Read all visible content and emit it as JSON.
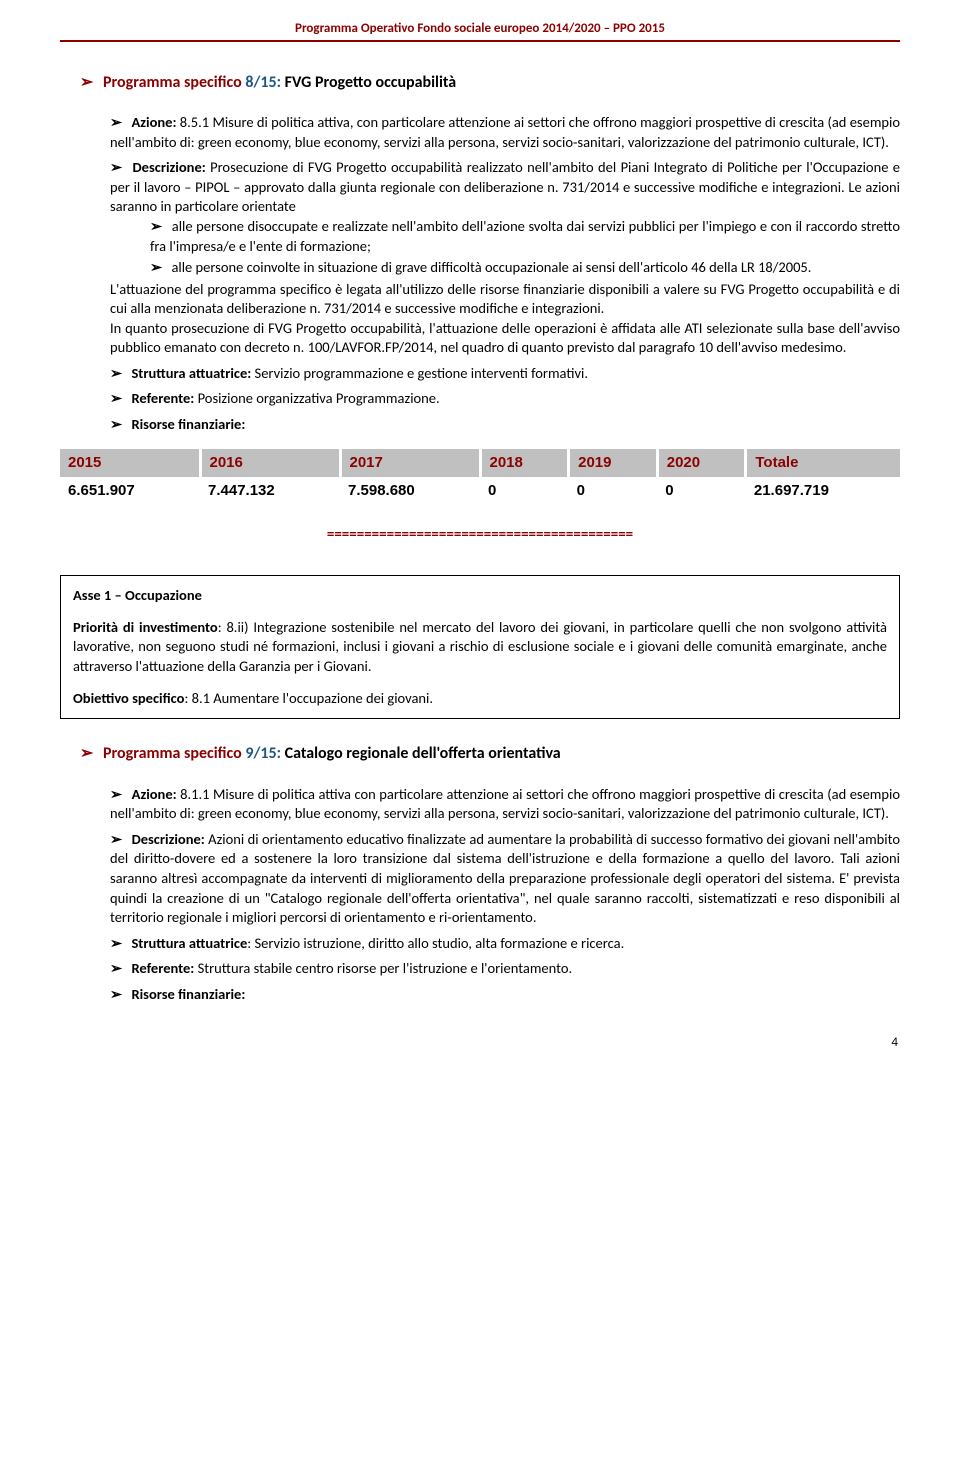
{
  "header": {
    "title": "Programma Operativo Fondo sociale europeo 2014/2020 – PPO 2015"
  },
  "program1": {
    "label": "Programma specifico",
    "num": " 8/15:",
    "title": " FVG Progetto occupabilità",
    "azione_label": "Azione:",
    "azione_text": " 8.5.1 Misure di politica attiva, con particolare attenzione ai settori che offrono maggiori prospettive di crescita (ad esempio nell'ambito di: green economy, blue economy, servizi alla persona, servizi socio-sanitari, valorizzazione del patrimonio culturale, ICT).",
    "descrizione_label": "Descrizione:",
    "descrizione_text": " Prosecuzione di FVG Progetto occupabilità realizzato nell'ambito del Piani Integrato di Politiche per l'Occupazione e per il lavoro – PIPOL – approvato dalla giunta regionale con deliberazione n. 731/2014 e successive modifiche e integrazioni. Le azioni saranno in particolare orientate",
    "sub1": "alle persone disoccupate e realizzate nell'ambito dell'azione svolta dai servizi pubblici per l'impiego e con il raccordo stretto fra l'impresa/e  e l'ente di formazione;",
    "sub2": "alle persone coinvolte in situazione di grave difficoltà  occupazionale ai sensi dell'articolo 46 della LR 18/2005.",
    "para2": "L'attuazione del programma specifico è legata all'utilizzo delle risorse finanziarie disponibili a valere su FVG Progetto occupabilità e di cui alla menzionata deliberazione n. 731/2014 e successive modifiche e integrazioni.",
    "para3": "In quanto prosecuzione di FVG Progetto occupabilità, l'attuazione delle operazioni è affidata alle ATI selezionate sulla base dell'avviso pubblico emanato con decreto n.  100/LAVFOR.FP/2014, nel quadro di quanto previsto dal paragrafo 10 dell'avviso medesimo.",
    "struttura_label": "Struttura attuatrice:",
    "struttura_text": "  Servizio programmazione e gestione interventi formativi.",
    "referente_label": "Referente:",
    "referente_text": " Posizione organizzativa Programmazione.",
    "risorse_label": "Risorse finanziarie:"
  },
  "table1": {
    "headers": [
      "2015",
      "2016",
      "2017",
      "2018",
      "2019",
      "2020",
      "Totale"
    ],
    "row": [
      "6.651.907",
      "7.447.132",
      "7.598.680",
      "0",
      "0",
      "0",
      "21.697.719"
    ]
  },
  "separator": "=========================================",
  "box": {
    "asse_label": "Asse 1 – Occupazione",
    "priorita_label": "Priorità di investimento",
    "priorita_text": ": 8.ii) Integrazione sostenibile nel mercato del lavoro dei giovani, in particolare quelli che non svolgono attività lavorative, non seguono studi né formazioni, inclusi i giovani a rischio di esclusione sociale e i giovani delle comunità emarginate, anche attraverso l'attuazione della Garanzia per i Giovani.",
    "obiettivo_label": "Obiettivo specifico",
    "obiettivo_text": ": 8.1 Aumentare l'occupazione dei giovani."
  },
  "program2": {
    "label": "Programma specifico",
    "num": " 9/15:",
    "title": "  Catalogo regionale dell'offerta orientativa",
    "azione_label": "Azione:",
    "azione_text": "  8.1.1 Misure di politica attiva con particolare attenzione ai settori che offrono maggiori prospettive di crescita (ad esempio nell'ambito di: green economy, blue economy, servizi alla persona, servizi socio-sanitari, valorizzazione del patrimonio culturale, ICT).",
    "descrizione_label": "Descrizione:",
    "descrizione_text": "  Azioni di orientamento educativo finalizzate ad  aumentare la probabilità di successo formativo dei giovani nell'ambito del diritto-dovere ed  a  sostenere la loro  transizione dal sistema dell'istruzione e della formazione  a quello del lavoro. Tali azioni saranno altresì accompagnate  da  interventi di miglioramento della preparazione   professionale degli operatori del sistema. E' prevista quindi la creazione di un \"Catalogo regionale dell'offerta orientativa\", nel quale saranno raccolti, sistematizzati e reso disponibili al territorio regionale i migliori percorsi di orientamento e ri-orientamento.",
    "struttura_label": "Struttura attuatrice",
    "struttura_text": ":  Servizio istruzione, diritto allo studio, alta formazione e ricerca.",
    "referente_label": "Referente:",
    "referente_text": "  Struttura stabile centro risorse per l'istruzione e l'orientamento.",
    "risorse_label": "Risorse finanziarie:"
  },
  "page_number": "4",
  "colors": {
    "maroon": "#8b0000",
    "blue": "#1f5582",
    "table_header_bg": "#c0c0c0"
  }
}
